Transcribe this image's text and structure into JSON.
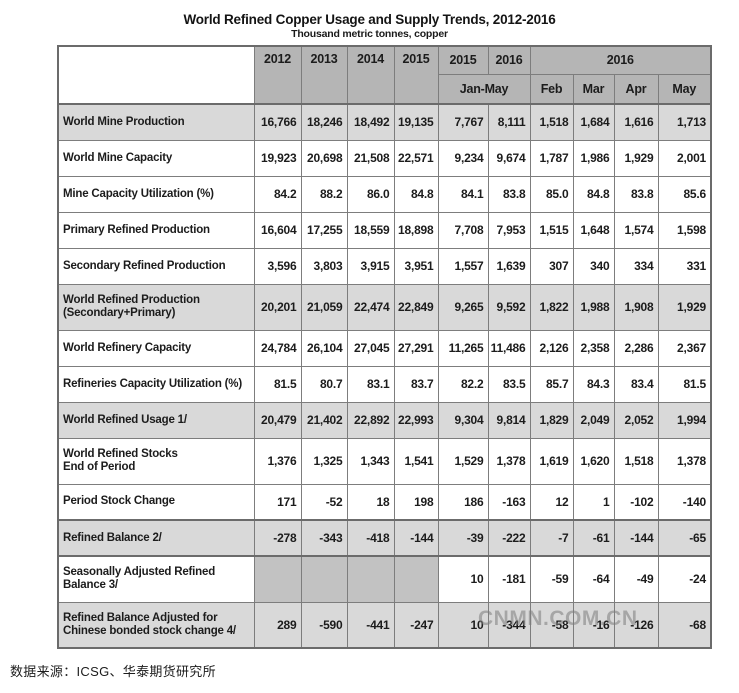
{
  "page": {
    "title": "World Refined Copper Usage and Supply Trends, 2012-2016",
    "subtitle": "Thousand metric tonnes, copper",
    "source_note": "数据来源：ICSG、华泰期货研究所",
    "watermark": "CNMN.COM.CN"
  },
  "colors": {
    "header_bg": "#b5b5b5",
    "shaded_row_bg": "#d9d9d9",
    "blank_cell_bg": "#c2c2c2",
    "border": "#7d7d7d"
  },
  "table": {
    "header": {
      "corner": "",
      "years": [
        "2012",
        "2013",
        "2014",
        "2015"
      ],
      "janmay_years": [
        "2015",
        "2016"
      ],
      "monthly_group_year": "2016",
      "janmay_label": "Jan-May",
      "months": [
        "Feb",
        "Mar",
        "Apr",
        "May"
      ]
    },
    "rows": [
      {
        "label_lines": [
          "World Mine Production"
        ],
        "shaded": true,
        "thick_top": false,
        "values": [
          "16,766",
          "18,246",
          "18,492",
          "19,135",
          "7,767",
          "8,111",
          "1,518",
          "1,684",
          "1,616",
          "1,713"
        ]
      },
      {
        "label_lines": [
          "World Mine Capacity"
        ],
        "shaded": false,
        "thick_top": false,
        "values": [
          "19,923",
          "20,698",
          "21,508",
          "22,571",
          "9,234",
          "9,674",
          "1,787",
          "1,986",
          "1,929",
          "2,001"
        ]
      },
      {
        "label_lines": [
          "Mine Capacity Utilization (%)"
        ],
        "shaded": false,
        "thick_top": false,
        "values": [
          "84.2",
          "88.2",
          "86.0",
          "84.8",
          "84.1",
          "83.8",
          "85.0",
          "84.8",
          "83.8",
          "85.6"
        ]
      },
      {
        "label_lines": [
          "Primary Refined Production"
        ],
        "shaded": false,
        "thick_top": false,
        "values": [
          "16,604",
          "17,255",
          "18,559",
          "18,898",
          "7,708",
          "7,953",
          "1,515",
          "1,648",
          "1,574",
          "1,598"
        ]
      },
      {
        "label_lines": [
          "Secondary Refined Production"
        ],
        "shaded": false,
        "thick_top": false,
        "values": [
          "3,596",
          "3,803",
          "3,915",
          "3,951",
          "1,557",
          "1,639",
          "307",
          "340",
          "334",
          "331"
        ]
      },
      {
        "label_lines": [
          "World Refined Production",
          "(Secondary+Primary)"
        ],
        "shaded": true,
        "thick_top": false,
        "values": [
          "20,201",
          "21,059",
          "22,474",
          "22,849",
          "9,265",
          "9,592",
          "1,822",
          "1,988",
          "1,908",
          "1,929"
        ]
      },
      {
        "label_lines": [
          "World Refinery Capacity"
        ],
        "shaded": false,
        "thick_top": false,
        "values": [
          "24,784",
          "26,104",
          "27,045",
          "27,291",
          "11,265",
          "11,486",
          "2,126",
          "2,358",
          "2,286",
          "2,367"
        ]
      },
      {
        "label_lines": [
          "Refineries Capacity Utilization (%)"
        ],
        "shaded": false,
        "thick_top": false,
        "values": [
          "81.5",
          "80.7",
          "83.1",
          "83.7",
          "82.2",
          "83.5",
          "85.7",
          "84.3",
          "83.4",
          "81.5"
        ]
      },
      {
        "label_lines": [
          "World Refined Usage 1/"
        ],
        "shaded": true,
        "thick_top": false,
        "values": [
          "20,479",
          "21,402",
          "22,892",
          "22,993",
          "9,304",
          "9,814",
          "1,829",
          "2,049",
          "2,052",
          "1,994"
        ]
      },
      {
        "label_lines": [
          "World Refined Stocks",
          "End of Period"
        ],
        "shaded": false,
        "thick_top": false,
        "values": [
          "1,376",
          "1,325",
          "1,343",
          "1,541",
          "1,529",
          "1,378",
          "1,619",
          "1,620",
          "1,518",
          "1,378"
        ]
      },
      {
        "label_lines": [
          "Period  Stock Change"
        ],
        "shaded": false,
        "thick_top": false,
        "values": [
          "171",
          "-52",
          "18",
          "198",
          "186",
          "-163",
          "12",
          "1",
          "-102",
          "-140"
        ]
      },
      {
        "label_lines": [
          "Refined Balance 2/"
        ],
        "shaded": true,
        "thick_top": true,
        "values": [
          "-278",
          "-343",
          "-418",
          "-144",
          "-39",
          "-222",
          "-7",
          "-61",
          "-144",
          "-65"
        ]
      },
      {
        "label_lines": [
          "Seasonally Adjusted Refined",
          "Balance 3/"
        ],
        "shaded": false,
        "thick_top": true,
        "values": [
          "",
          "",
          "",
          "",
          "10",
          "-181",
          "-59",
          "-64",
          "-49",
          "-24"
        ]
      },
      {
        "label_lines": [
          "Refined Balance Adjusted for",
          "Chinese bonded stock change 4/"
        ],
        "shaded": true,
        "thick_top": false,
        "values": [
          "289",
          "-590",
          "-441",
          "-247",
          "10",
          "-344",
          "-58",
          "-16",
          "-126",
          "-68"
        ]
      }
    ]
  },
  "chart_data": {
    "type": "table",
    "title": "World Refined Copper Usage and Supply Trends, 2012-2016",
    "units": "Thousand metric tonnes, copper",
    "source": "ICSG、华泰期货研究所",
    "columns": [
      "2012",
      "2013",
      "2014",
      "2015",
      "Jan-May 2015",
      "Jan-May 2016",
      "Feb 2016",
      "Mar 2016",
      "Apr 2016",
      "May 2016"
    ],
    "rows": [
      {
        "label": "World Mine Production",
        "values": [
          16766,
          18246,
          18492,
          19135,
          7767,
          8111,
          1518,
          1684,
          1616,
          1713
        ]
      },
      {
        "label": "World Mine Capacity",
        "values": [
          19923,
          20698,
          21508,
          22571,
          9234,
          9674,
          1787,
          1986,
          1929,
          2001
        ]
      },
      {
        "label": "Mine Capacity Utilization (%)",
        "values": [
          84.2,
          88.2,
          86.0,
          84.8,
          84.1,
          83.8,
          85.0,
          84.8,
          83.8,
          85.6
        ]
      },
      {
        "label": "Primary Refined Production",
        "values": [
          16604,
          17255,
          18559,
          18898,
          7708,
          7953,
          1515,
          1648,
          1574,
          1598
        ]
      },
      {
        "label": "Secondary Refined Production",
        "values": [
          3596,
          3803,
          3915,
          3951,
          1557,
          1639,
          307,
          340,
          334,
          331
        ]
      },
      {
        "label": "World Refined Production (Secondary+Primary)",
        "values": [
          20201,
          21059,
          22474,
          22849,
          9265,
          9592,
          1822,
          1988,
          1908,
          1929
        ]
      },
      {
        "label": "World Refinery Capacity",
        "values": [
          24784,
          26104,
          27045,
          27291,
          11265,
          11486,
          2126,
          2358,
          2286,
          2367
        ]
      },
      {
        "label": "Refineries Capacity Utilization (%)",
        "values": [
          81.5,
          80.7,
          83.1,
          83.7,
          82.2,
          83.5,
          85.7,
          84.3,
          83.4,
          81.5
        ]
      },
      {
        "label": "World Refined Usage 1/",
        "values": [
          20479,
          21402,
          22892,
          22993,
          9304,
          9814,
          1829,
          2049,
          2052,
          1994
        ]
      },
      {
        "label": "World Refined Stocks End of Period",
        "values": [
          1376,
          1325,
          1343,
          1541,
          1529,
          1378,
          1619,
          1620,
          1518,
          1378
        ]
      },
      {
        "label": "Period Stock Change",
        "values": [
          171,
          -52,
          18,
          198,
          186,
          -163,
          12,
          1,
          -102,
          -140
        ]
      },
      {
        "label": "Refined Balance 2/",
        "values": [
          -278,
          -343,
          -418,
          -144,
          -39,
          -222,
          -7,
          -61,
          -144,
          -65
        ]
      },
      {
        "label": "Seasonally Adjusted Refined Balance 3/",
        "values": [
          null,
          null,
          null,
          null,
          10,
          -181,
          -59,
          -64,
          -49,
          -24
        ]
      },
      {
        "label": "Refined Balance Adjusted for Chinese bonded stock change 4/",
        "values": [
          289,
          -590,
          -441,
          -247,
          10,
          -344,
          -58,
          -16,
          -126,
          -68
        ]
      }
    ]
  }
}
